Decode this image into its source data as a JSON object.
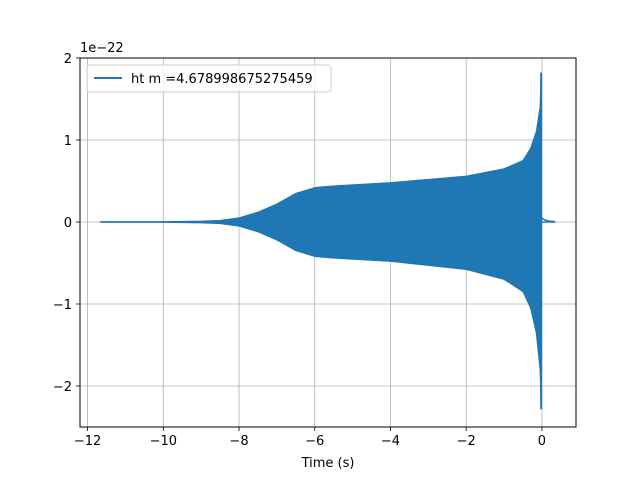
{
  "chart_data": {
    "type": "line",
    "title": "",
    "xlabel": "Time (s)",
    "ylabel": "",
    "y_offset_text": "1e−22",
    "xlim": [
      -12.2,
      0.9
    ],
    "ylim": [
      -2.5,
      2.0
    ],
    "x_ticks": [
      -12,
      -10,
      -8,
      -6,
      -4,
      -2,
      0
    ],
    "x_tick_labels": [
      "−12",
      "−10",
      "−8",
      "−6",
      "−4",
      "−2",
      "0"
    ],
    "y_ticks": [
      -2,
      -1,
      0,
      1,
      2
    ],
    "y_tick_labels": [
      "−2",
      "−1",
      "0",
      "1",
      "2"
    ],
    "grid": true,
    "legend_position": "top-left",
    "series": [
      {
        "name": "ht m =4.678998675275459",
        "color": "#1f77b4",
        "envelope_upper": {
          "x": [
            -11.65,
            -10,
            -9,
            -8.5,
            -8,
            -7.5,
            -7,
            -6.5,
            -6,
            -5.5,
            -4,
            -2,
            -1,
            -0.5,
            -0.3,
            -0.15,
            -0.05,
            -0.02
          ],
          "y": [
            0.005,
            0.005,
            0.01,
            0.02,
            0.05,
            0.12,
            0.22,
            0.35,
            0.42,
            0.44,
            0.48,
            0.56,
            0.65,
            0.75,
            0.9,
            1.1,
            1.4,
            1.82
          ]
        },
        "envelope_lower": {
          "x": [
            -11.65,
            -10,
            -9,
            -8.5,
            -8,
            -7.5,
            -7,
            -6.5,
            -6,
            -5.5,
            -4,
            -2,
            -1,
            -0.5,
            -0.3,
            -0.15,
            -0.05,
            -0.02
          ],
          "y": [
            -0.005,
            -0.005,
            -0.01,
            -0.02,
            -0.05,
            -0.12,
            -0.22,
            -0.35,
            -0.42,
            -0.44,
            -0.48,
            -0.58,
            -0.7,
            -0.85,
            -1.05,
            -1.35,
            -1.8,
            -2.28
          ]
        },
        "ringdown": {
          "x": [
            0.0,
            0.05,
            0.1,
            0.2,
            0.35
          ],
          "y": [
            0.05,
            0.03,
            0.02,
            0.01,
            0.005
          ]
        }
      }
    ]
  }
}
